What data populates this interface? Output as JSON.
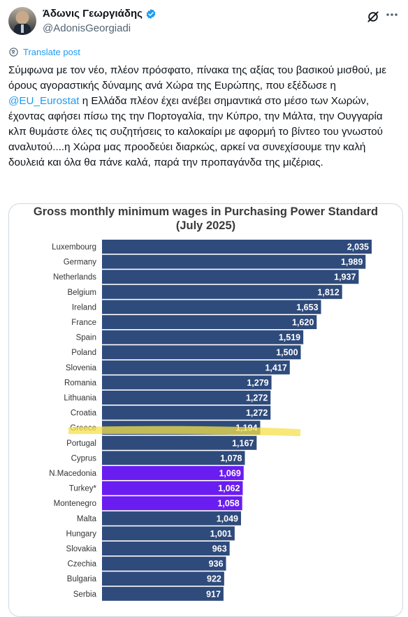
{
  "post": {
    "author_name": "Άδωνις Γεωργιάδης",
    "author_handle": "@AdonisGeorgiadi",
    "translate_label": "Translate post",
    "text_parts": [
      "Σύμφωνα με τον νέο, πλέον πρόσφατο, πίνακα της αξίας του βασικού μισθού, με όρους αγοραστικής δύναμης ανά Χώρα της Ευρώπης, που εξέδωσε η ",
      "@EU_Eurostat",
      " η Ελλάδα πλέον έχει ανέβει σημαντικά στο μέσο των Χωρών, έχοντας αφήσει πίσω της την Πορτογαλία, την Κύπρο, την Μάλτα, την Ουγγαρία κλπ θυμάστε όλες τις συζητήσεις το καλοκαίρι με αφορμή το βίντεο του γνωστού αναλυτού....η Χώρα μας προοδεύει διαρκώς, αρκεί να συνεχίσουμε την καλή δουλειά και όλα θα πάνε καλά, παρά την προπαγάνδα της μιζέριας."
    ],
    "icons": [
      "verified-badge-icon",
      "grok-icon",
      "more-icon",
      "translate-icon"
    ],
    "colors": {
      "link": "#1d9bf0",
      "muted": "#536471",
      "text": "#0f1419"
    }
  },
  "chart_data": {
    "type": "bar",
    "orientation": "horizontal",
    "title_line1": "Gross monthly minimum wages in Purchasing Power Standard",
    "title_line2": "(July 2025)",
    "categories": [
      "Luxembourg",
      "Germany",
      "Netherlands",
      "Belgium",
      "Ireland",
      "France",
      "Spain",
      "Poland",
      "Slovenia",
      "Romania",
      "Lithuania",
      "Croatia",
      "Greece",
      "Portugal",
      "Cyprus",
      "N.Macedonia",
      "Turkey*",
      "Montenegro",
      "Malta",
      "Hungary",
      "Slovakia",
      "Czechia",
      "Bulgaria",
      "Serbia"
    ],
    "values": [
      2035,
      1989,
      1937,
      1812,
      1653,
      1620,
      1519,
      1500,
      1417,
      1279,
      1272,
      1272,
      1194,
      1167,
      1078,
      1069,
      1062,
      1058,
      1049,
      1001,
      963,
      936,
      922,
      917
    ],
    "value_labels": [
      "2,035",
      "1,989",
      "1,937",
      "1,812",
      "1,653",
      "1,620",
      "1,519",
      "1,500",
      "1,417",
      "1,279",
      "1,272",
      "1,272",
      "1,194",
      "1,167",
      "1,078",
      "1,069",
      "1,062",
      "1,058",
      "1,049",
      "1,001",
      "963",
      "936",
      "922",
      "917"
    ],
    "non_eu": [
      "N.Macedonia",
      "Turkey*",
      "Montenegro"
    ],
    "highlighted": "Greece",
    "colors": {
      "eu_bar": "#2f4b7c",
      "non_eu_bar": "#6a1df0",
      "highlight": "#f5e04a",
      "label": "#333333"
    },
    "grid": false,
    "legend": "none"
  }
}
